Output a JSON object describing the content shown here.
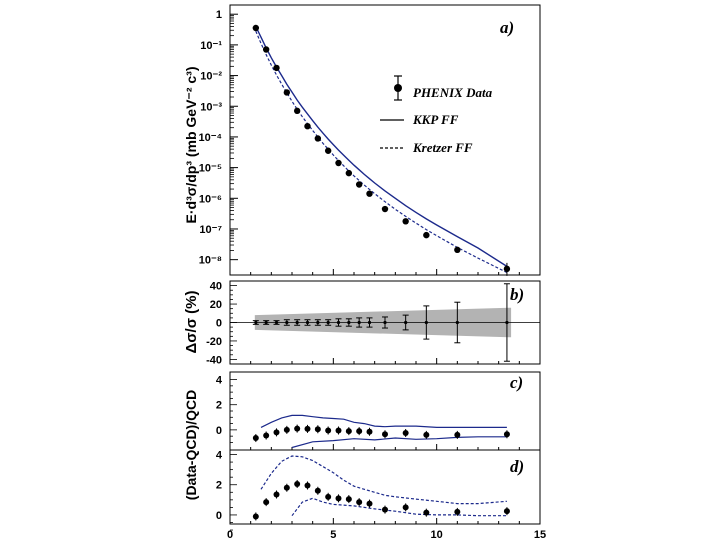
{
  "figure": {
    "y_title_top": "E·d³σ/dp³ (mb GeV⁻² c³)",
    "y_title_mid": "Δσ/σ (%)",
    "y_title_bot": "(Data-QCD)/QCD"
  },
  "chart_data": [
    {
      "panel": "a)",
      "type": "scatter",
      "yscale": "log",
      "xlim": [
        0,
        15
      ],
      "ylim_exp": [
        -8.5,
        0.3
      ],
      "ytick_labels": [
        "1",
        "10⁻¹",
        "10⁻²",
        "10⁻³",
        "10⁻⁴",
        "10⁻⁵",
        "10⁻⁶",
        "10⁻⁷",
        "10⁻⁸"
      ],
      "legend": {
        "data": "PHENIX Data",
        "kkp": "KKP FF",
        "kretzer": "Kretzer FF"
      },
      "data": {
        "x": [
          1.25,
          1.75,
          2.25,
          2.75,
          3.25,
          3.75,
          4.25,
          4.75,
          5.25,
          5.75,
          6.25,
          6.75,
          7.5,
          8.5,
          9.5,
          11.0,
          13.4
        ],
        "y_exp": [
          -0.45,
          -1.15,
          -1.75,
          -2.55,
          -3.15,
          -3.65,
          -4.05,
          -4.45,
          -4.85,
          -5.18,
          -5.55,
          -5.85,
          -6.35,
          -6.75,
          -7.2,
          -7.68,
          -8.3
        ]
      },
      "kkp_curve": {
        "x": [
          1.25,
          1.5,
          1.75,
          2.0,
          2.25,
          2.5,
          2.75,
          3.0,
          3.25,
          3.5,
          3.75,
          4.0,
          4.25,
          4.5,
          4.75,
          5.0,
          5.25,
          5.5,
          5.75,
          6.0,
          6.25,
          6.5,
          6.75,
          7.0,
          7.5,
          8.0,
          8.5,
          9.0,
          9.5,
          10.0,
          11.0,
          12.0,
          13.4
        ],
        "y_exp": [
          -0.4,
          -0.75,
          -1.1,
          -1.42,
          -1.72,
          -2.0,
          -2.28,
          -2.54,
          -2.8,
          -3.03,
          -3.25,
          -3.47,
          -3.68,
          -3.88,
          -4.07,
          -4.25,
          -4.43,
          -4.6,
          -4.76,
          -4.92,
          -5.07,
          -5.22,
          -5.36,
          -5.5,
          -5.76,
          -6.0,
          -6.24,
          -6.46,
          -6.67,
          -6.87,
          -7.25,
          -7.62,
          -8.22
        ]
      },
      "kretzer_curve": {
        "x": [
          1.25,
          1.5,
          1.75,
          2.0,
          2.25,
          2.5,
          2.75,
          3.0,
          3.25,
          3.5,
          3.75,
          4.0,
          4.25,
          4.5,
          4.75,
          5.0,
          5.25,
          5.5,
          5.75,
          6.0,
          6.25,
          6.5,
          6.75,
          7.0,
          7.5,
          8.0,
          8.5,
          9.0,
          9.5,
          10.0,
          11.0,
          12.0,
          13.4
        ],
        "y_exp": [
          -0.55,
          -0.95,
          -1.32,
          -1.66,
          -1.98,
          -2.28,
          -2.56,
          -2.84,
          -3.1,
          -3.34,
          -3.57,
          -3.79,
          -4.0,
          -4.21,
          -4.4,
          -4.59,
          -4.77,
          -4.94,
          -5.11,
          -5.27,
          -5.42,
          -5.57,
          -5.71,
          -5.85,
          -6.11,
          -6.36,
          -6.59,
          -6.81,
          -7.02,
          -7.22,
          -7.6,
          -7.95,
          -8.42
        ]
      }
    },
    {
      "panel": "b)",
      "type": "scatter",
      "xlim": [
        0,
        15
      ],
      "ylim": [
        -45,
        45
      ],
      "yticks": [
        40,
        20,
        0,
        -20,
        -40
      ],
      "ytick_labels": [
        "40",
        "20",
        "0",
        "-20",
        "-40"
      ],
      "data": {
        "x": [
          1.25,
          1.75,
          2.25,
          2.75,
          3.25,
          3.75,
          4.25,
          4.75,
          5.25,
          5.75,
          6.25,
          6.75,
          7.5,
          8.5,
          9.5,
          11.0,
          13.4
        ],
        "y": [
          0,
          0,
          0,
          0,
          0,
          0,
          0,
          0,
          0,
          0,
          0,
          0,
          0,
          0,
          0,
          0,
          0
        ],
        "err": [
          2,
          2,
          2,
          3,
          3,
          3,
          3,
          3,
          4,
          4,
          5,
          5,
          6,
          8,
          18,
          22,
          42
        ]
      },
      "band": {
        "x": [
          1.2,
          13.6
        ],
        "half_width": [
          8,
          16
        ]
      }
    },
    {
      "panel": "c)",
      "type": "scatter",
      "xlim": [
        0,
        15
      ],
      "ylim": [
        -1.6,
        4.6
      ],
      "yticks": [
        4,
        2,
        0
      ],
      "ytick_labels": [
        "4",
        "2",
        "0"
      ],
      "data": {
        "x": [
          1.25,
          1.75,
          2.25,
          2.75,
          3.25,
          3.75,
          4.25,
          4.75,
          5.25,
          5.75,
          6.25,
          6.75,
          7.5,
          8.5,
          9.5,
          11.0,
          13.4
        ],
        "y": [
          -0.65,
          -0.45,
          -0.2,
          0.0,
          0.1,
          0.08,
          0.05,
          -0.05,
          -0.05,
          -0.1,
          -0.1,
          -0.15,
          -0.35,
          -0.25,
          -0.4,
          -0.4,
          -0.35
        ]
      },
      "upper": {
        "x": [
          1.5,
          2.0,
          2.5,
          3.0,
          3.5,
          4.0,
          4.5,
          5.0,
          5.5,
          6.0,
          6.5,
          7.0,
          7.5,
          8.0,
          9.0,
          10.0,
          11.0,
          12.0,
          13.4
        ],
        "y": [
          0.2,
          0.6,
          0.95,
          1.15,
          1.15,
          1.05,
          0.95,
          0.9,
          0.85,
          0.6,
          0.5,
          0.3,
          0.25,
          0.3,
          0.3,
          0.2,
          0.2,
          0.2,
          0.2
        ]
      },
      "lower": {
        "x": [
          3.0,
          4.0,
          5.0,
          6.0,
          7.0,
          8.0,
          9.0,
          10.0,
          11.0,
          12.0,
          13.4
        ],
        "y": [
          -1.4,
          -0.95,
          -0.85,
          -0.7,
          -0.8,
          -0.65,
          -0.75,
          -0.7,
          -0.6,
          -0.55,
          -0.55
        ]
      }
    },
    {
      "panel": "d)",
      "type": "scatter",
      "xlim": [
        0,
        15
      ],
      "ylim": [
        -0.6,
        4.3
      ],
      "yticks": [
        4,
        2,
        0
      ],
      "ytick_labels": [
        "4",
        "2",
        "0"
      ],
      "xticks": [
        0,
        5,
        10,
        15
      ],
      "xtick_labels": [
        "0",
        "5",
        "10",
        "15"
      ],
      "data": {
        "x": [
          1.25,
          1.75,
          2.25,
          2.75,
          3.25,
          3.75,
          4.25,
          4.75,
          5.25,
          5.75,
          6.25,
          6.75,
          7.5,
          8.5,
          9.5,
          11.0,
          13.4
        ],
        "y": [
          -0.1,
          0.85,
          1.35,
          1.8,
          2.05,
          1.95,
          1.6,
          1.2,
          1.1,
          1.05,
          0.85,
          0.75,
          0.35,
          0.5,
          0.15,
          0.2,
          0.25
        ]
      },
      "upper": {
        "x": [
          1.5,
          2.0,
          2.5,
          3.0,
          3.5,
          4.0,
          4.5,
          5.0,
          5.5,
          6.0,
          6.5,
          7.0,
          7.5,
          8.0,
          9.0,
          10.0,
          11.0,
          12.0,
          13.4
        ],
        "y": [
          1.7,
          2.75,
          3.55,
          3.9,
          3.85,
          3.6,
          3.2,
          2.8,
          2.3,
          1.9,
          1.7,
          1.5,
          1.3,
          1.2,
          1.05,
          0.9,
          0.75,
          0.75,
          0.9
        ]
      },
      "lower": {
        "x": [
          3.0,
          3.5,
          4.0,
          4.5,
          5.0,
          6.0,
          7.0,
          8.0,
          9.0,
          10.0,
          11.0,
          12.0,
          13.4
        ],
        "y": [
          -0.05,
          0.85,
          1.1,
          0.85,
          0.7,
          0.6,
          0.4,
          0.25,
          0.05,
          0.0,
          0.0,
          -0.05,
          -0.05
        ]
      }
    }
  ]
}
